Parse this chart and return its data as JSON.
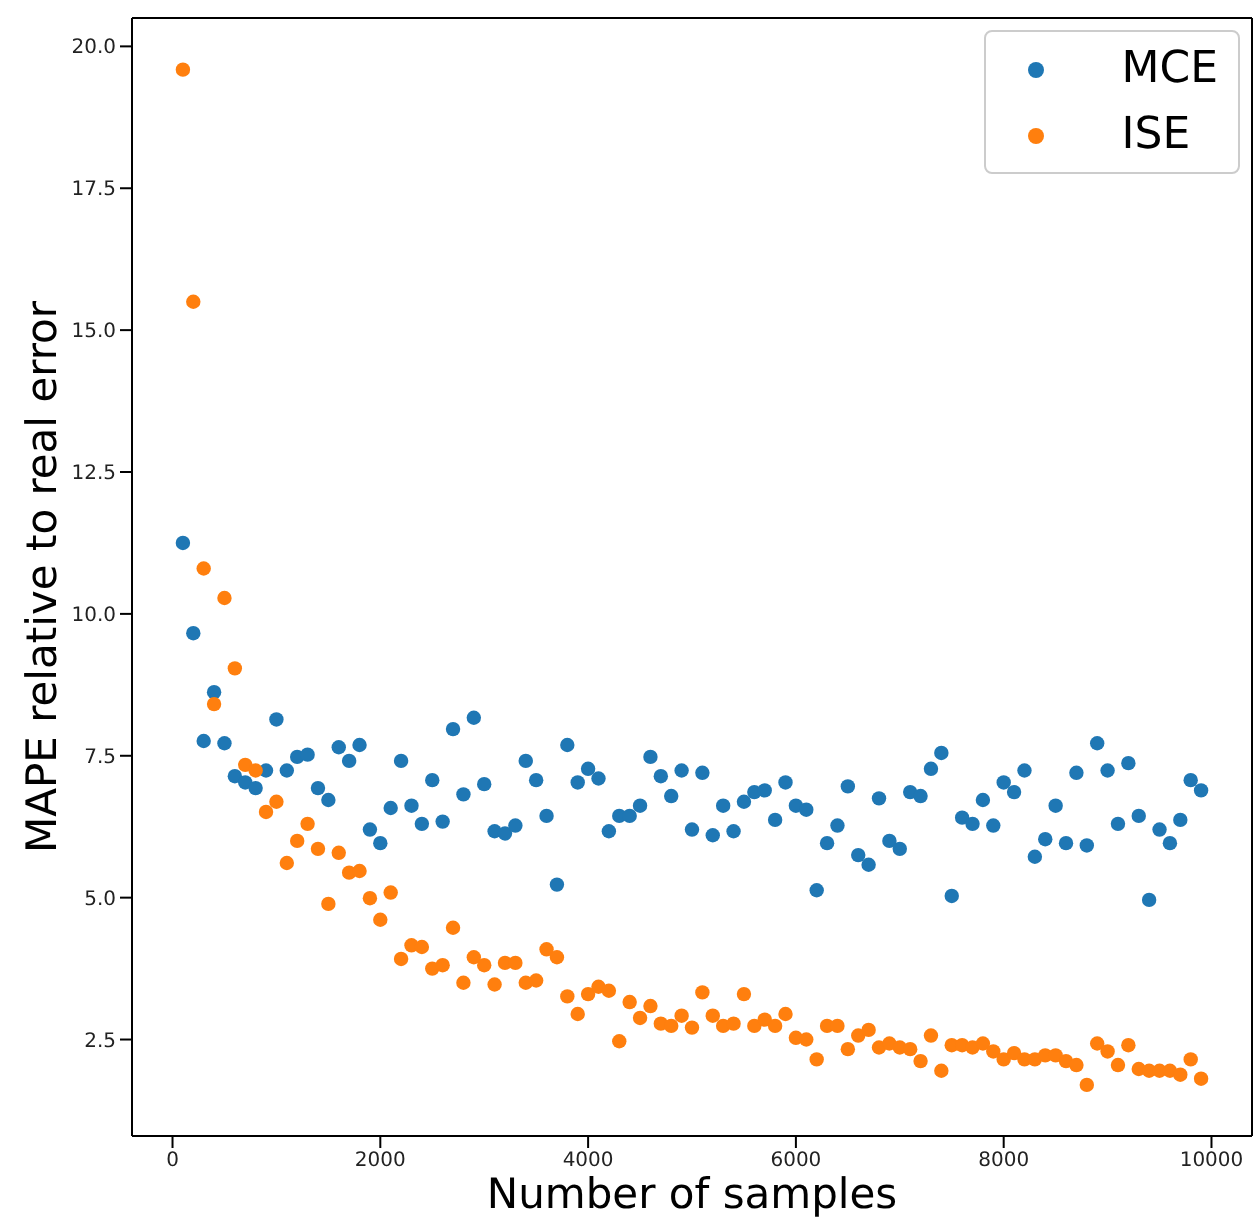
{
  "chart_data": {
    "type": "scatter",
    "xlabel": "Number of samples",
    "ylabel": "MAPE relative to real error",
    "x": [
      100,
      200,
      300,
      400,
      500,
      600,
      700,
      800,
      900,
      1000,
      1100,
      1200,
      1300,
      1400,
      1500,
      1600,
      1700,
      1800,
      1900,
      2000,
      2100,
      2200,
      2300,
      2400,
      2500,
      2600,
      2700,
      2800,
      2900,
      3000,
      3100,
      3200,
      3300,
      3400,
      3500,
      3600,
      3700,
      3800,
      3900,
      4000,
      4100,
      4200,
      4300,
      4400,
      4500,
      4600,
      4700,
      4800,
      4900,
      5000,
      5100,
      5200,
      5300,
      5400,
      5500,
      5600,
      5700,
      5800,
      5900,
      6000,
      6100,
      6200,
      6300,
      6400,
      6500,
      6600,
      6700,
      6800,
      6900,
      7000,
      7100,
      7200,
      7300,
      7400,
      7500,
      7600,
      7700,
      7800,
      7900,
      8000,
      8100,
      8200,
      8300,
      8400,
      8500,
      8600,
      8700,
      8800,
      8900,
      9000,
      9100,
      9200,
      9300,
      9400,
      9500,
      9600,
      9700,
      9800,
      9900
    ],
    "series": [
      {
        "name": "MCE",
        "color": "#1f77b4",
        "values": [
          11.25,
          9.66,
          7.76,
          8.62,
          7.72,
          7.14,
          7.03,
          6.93,
          7.24,
          8.14,
          7.24,
          7.48,
          7.52,
          6.93,
          6.72,
          7.65,
          7.41,
          7.69,
          6.2,
          5.96,
          6.58,
          7.41,
          6.62,
          6.3,
          7.07,
          6.34,
          7.97,
          6.82,
          8.17,
          7.0,
          6.17,
          6.13,
          6.27,
          7.41,
          7.07,
          6.44,
          5.23,
          7.69,
          7.03,
          7.27,
          7.1,
          6.17,
          6.44,
          6.44,
          6.62,
          7.48,
          7.14,
          6.79,
          7.24,
          6.2,
          7.2,
          6.1,
          6.62,
          6.17,
          6.69,
          6.86,
          6.89,
          6.37,
          7.03,
          6.62,
          6.55,
          5.13,
          5.96,
          6.27,
          6.96,
          5.75,
          5.58,
          6.75,
          6.0,
          5.86,
          6.86,
          6.79,
          7.27,
          7.55,
          5.03,
          6.41,
          6.3,
          6.72,
          6.27,
          7.03,
          6.86,
          7.24,
          5.72,
          6.03,
          6.62,
          5.96,
          7.2,
          5.92,
          7.72,
          7.24,
          6.3,
          7.37,
          6.44,
          4.96,
          6.2,
          5.96,
          6.37,
          7.07,
          6.89
        ]
      },
      {
        "name": "ISE",
        "color": "#ff7f0e",
        "values": [
          19.59,
          15.5,
          10.8,
          8.41,
          10.28,
          9.04,
          7.34,
          7.24,
          6.51,
          6.69,
          5.61,
          6.0,
          6.3,
          5.86,
          4.89,
          5.79,
          5.44,
          5.47,
          4.99,
          4.61,
          5.09,
          3.92,
          4.16,
          4.13,
          3.75,
          3.81,
          4.47,
          3.5,
          3.95,
          3.81,
          3.47,
          3.85,
          3.85,
          3.5,
          3.54,
          4.09,
          3.95,
          3.26,
          2.95,
          3.3,
          3.43,
          3.36,
          2.47,
          3.16,
          2.88,
          3.09,
          2.78,
          2.74,
          2.92,
          2.71,
          3.33,
          2.92,
          2.74,
          2.78,
          3.3,
          2.74,
          2.85,
          2.74,
          2.95,
          2.53,
          2.5,
          2.15,
          2.74,
          2.74,
          2.33,
          2.57,
          2.67,
          2.36,
          2.43,
          2.36,
          2.33,
          2.12,
          2.57,
          1.95,
          2.4,
          2.4,
          2.36,
          2.43,
          2.29,
          2.15,
          2.26,
          2.15,
          2.15,
          2.22,
          2.22,
          2.12,
          2.05,
          1.7,
          2.43,
          2.29,
          2.05,
          2.4,
          1.98,
          1.95,
          1.95,
          1.95,
          1.88,
          2.15,
          1.81
        ]
      }
    ],
    "xlim": [
      -390,
      10390
    ],
    "xticks": [
      0,
      2000,
      4000,
      6000,
      8000,
      10000
    ],
    "ylim": [
      0.8,
      20.5
    ],
    "yticks": [
      2.5,
      {
        "value": 5,
        "label": "5.0"
      },
      7.5,
      {
        "value": 10,
        "label": "10.0"
      },
      12.5,
      {
        "value": 15,
        "label": "15.0"
      },
      17.5,
      {
        "value": 20,
        "label": "20.0"
      }
    ],
    "marker": "circle",
    "legend": "top right"
  }
}
